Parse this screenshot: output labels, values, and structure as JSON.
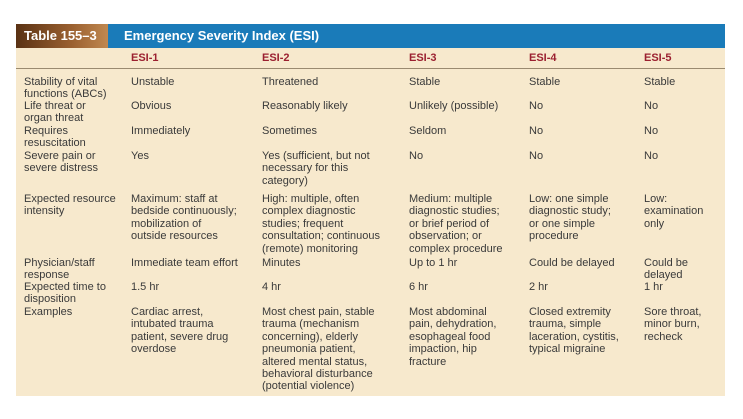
{
  "table": {
    "label": "Table 155–3",
    "title": "Emergency Severity Index (ESI)",
    "columns": [
      "",
      "ESI-1",
      "ESI-2",
      "ESI-3",
      "ESI-4",
      "ESI-5"
    ],
    "rows": [
      [
        "Stability of vital\n   functions (ABCs)",
        "Unstable",
        "Threatened",
        "Stable",
        "Stable",
        "Stable"
      ],
      [
        "Life threat or\n   organ threat",
        "Obvious",
        "Reasonably likely",
        "Unlikely (possible)",
        "No",
        "No"
      ],
      [
        "Requires\n   resuscitation",
        "Immediately",
        "Sometimes",
        "Seldom",
        "No",
        "No"
      ],
      [
        "Severe pain or\n   severe distress",
        "Yes",
        "Yes (sufficient, but not\n   necessary for this\n   category)",
        "No",
        "No",
        "No"
      ],
      [
        "Expected resource\n   intensity",
        "Maximum: staff at\n   bedside continuously;\n   mobilization of\n   outside resources",
        "High: multiple, often\n   complex diagnostic\n   studies; frequent\n   consultation; continuous\n   (remote) monitoring",
        "Medium: multiple\n   diagnostic studies;\n   or brief period of\n   observation; or\n   complex procedure",
        "Low: one simple\n   diagnostic study;\n   or one simple\n   procedure",
        "Low:\n   examination\n   only"
      ],
      [
        "Physician/staff\n   response",
        "Immediate team effort",
        "Minutes",
        "Up to 1 hr",
        "Could be delayed",
        "Could be\n   delayed"
      ],
      [
        "Expected time to\n   disposition",
        "1.5 hr",
        "4 hr",
        "6 hr",
        "2 hr",
        "1 hr"
      ],
      [
        "Examples",
        "Cardiac arrest,\n   intubated trauma\n   patient, severe drug\n   overdose",
        "Most chest pain, stable\n   trauma (mechanism\n   concerning), elderly\n   pneumonia patient,\n   altered mental status,\n   behavioral disturbance\n   (potential violence)",
        "Most abdominal\n   pain, dehydration,\n   esophageal food\n   impaction, hip\n   fracture",
        "Closed extremity\n   trauma, simple\n   laceration, cystitis,\n   typical migraine",
        "Sore throat,\n   minor burn,\n   recheck"
      ]
    ]
  },
  "colors": {
    "title_bar": "#1a7bb9",
    "header_text": "#9b2030",
    "background": "#f7e9cd"
  }
}
